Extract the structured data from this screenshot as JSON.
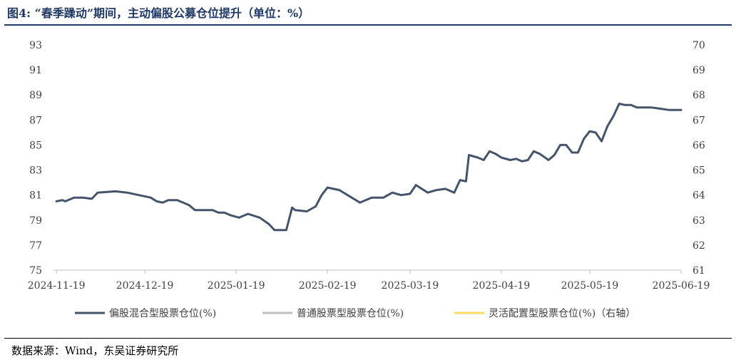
{
  "title": "图4:  “春季躁动”期间，主动偏股公募仓位提升（单位：%）",
  "source": "数据来源：Wind，东吴证券研究所",
  "chart_data": {
    "type": "line",
    "x_range": [
      "2024-11-18",
      "2025-06-19"
    ],
    "x_ticks": [
      "2024-11-19",
      "2024-12-19",
      "2025-01-19",
      "2025-02-19",
      "2025-03-19",
      "2025-04-19",
      "2025-05-19",
      "2025-06-19"
    ],
    "y_left": {
      "min": 75,
      "max": 93,
      "ticks": [
        "75",
        "77",
        "79",
        "81",
        "83",
        "85",
        "87",
        "89",
        "91",
        "93"
      ]
    },
    "y_right": {
      "min": 61,
      "max": 70,
      "ticks": [
        "61",
        "62",
        "63",
        "64",
        "65",
        "66",
        "67",
        "68",
        "69",
        "70"
      ]
    },
    "series": [
      {
        "name": "偏股混合型股票仓位(%)",
        "axis": "left",
        "color": "#44546a",
        "points": [
          [
            "2024-11-19",
            80.5
          ],
          [
            "2024-11-21",
            80.6
          ],
          [
            "2024-11-22",
            80.5
          ],
          [
            "2024-11-25",
            80.8
          ],
          [
            "2024-11-28",
            80.8
          ],
          [
            "2024-12-01",
            80.7
          ],
          [
            "2024-12-03",
            81.2
          ],
          [
            "2024-12-09",
            81.3
          ],
          [
            "2024-12-13",
            81.2
          ],
          [
            "2024-12-17",
            81.0
          ],
          [
            "2024-12-21",
            80.8
          ],
          [
            "2024-12-23",
            80.5
          ],
          [
            "2024-12-25",
            80.4
          ],
          [
            "2024-12-27",
            80.6
          ],
          [
            "2024-12-30",
            80.6
          ],
          [
            "2025-01-03",
            80.2
          ],
          [
            "2025-01-05",
            79.8
          ],
          [
            "2025-01-07",
            79.8
          ],
          [
            "2025-01-11",
            79.8
          ],
          [
            "2025-01-13",
            79.6
          ],
          [
            "2025-01-15",
            79.6
          ],
          [
            "2025-01-17",
            79.4
          ],
          [
            "2025-01-20",
            79.2
          ],
          [
            "2025-01-23",
            79.5
          ],
          [
            "2025-01-27",
            79.2
          ],
          [
            "2025-01-30",
            78.7
          ],
          [
            "2025-02-01",
            78.2
          ],
          [
            "2025-02-05",
            78.2
          ],
          [
            "2025-02-07",
            80.0
          ],
          [
            "2025-02-08",
            79.8
          ],
          [
            "2025-02-12",
            79.7
          ],
          [
            "2025-02-15",
            80.1
          ],
          [
            "2025-02-17",
            81.0
          ],
          [
            "2025-02-19",
            81.6
          ],
          [
            "2025-02-23",
            81.4
          ],
          [
            "2025-03-02",
            80.4
          ],
          [
            "2025-03-06",
            80.8
          ],
          [
            "2025-03-10",
            80.8
          ],
          [
            "2025-03-13",
            81.2
          ],
          [
            "2025-03-16",
            81.0
          ],
          [
            "2025-03-19",
            81.1
          ],
          [
            "2025-03-21",
            81.8
          ],
          [
            "2025-03-23",
            81.5
          ],
          [
            "2025-03-25",
            81.2
          ],
          [
            "2025-03-28",
            81.4
          ],
          [
            "2025-03-31",
            81.5
          ],
          [
            "2025-04-03",
            81.2
          ],
          [
            "2025-04-05",
            82.2
          ],
          [
            "2025-04-07",
            82.1
          ],
          [
            "2025-04-08",
            84.2
          ],
          [
            "2025-04-11",
            84.0
          ],
          [
            "2025-04-13",
            83.8
          ],
          [
            "2025-04-15",
            84.5
          ],
          [
            "2025-04-17",
            84.3
          ],
          [
            "2025-04-19",
            84.0
          ],
          [
            "2025-04-22",
            83.8
          ],
          [
            "2025-04-24",
            83.9
          ],
          [
            "2025-04-26",
            83.7
          ],
          [
            "2025-04-28",
            83.8
          ],
          [
            "2025-04-30",
            84.5
          ],
          [
            "2025-05-02",
            84.3
          ],
          [
            "2025-05-05",
            83.8
          ],
          [
            "2025-05-07",
            84.2
          ],
          [
            "2025-05-09",
            85.0
          ],
          [
            "2025-05-11",
            85.0
          ],
          [
            "2025-05-13",
            84.4
          ],
          [
            "2025-05-15",
            84.4
          ],
          [
            "2025-05-17",
            85.5
          ],
          [
            "2025-05-19",
            86.1
          ],
          [
            "2025-05-21",
            86.0
          ],
          [
            "2025-05-23",
            85.3
          ],
          [
            "2025-05-25",
            86.5
          ],
          [
            "2025-05-27",
            87.3
          ],
          [
            "2025-05-29",
            88.3
          ],
          [
            "2025-05-31",
            88.2
          ],
          [
            "2025-06-02",
            88.2
          ],
          [
            "2025-06-04",
            88.0
          ],
          [
            "2025-06-06",
            88.0
          ],
          [
            "2025-06-09",
            88.0
          ],
          [
            "2025-06-12",
            87.9
          ],
          [
            "2025-06-15",
            87.8
          ],
          [
            "2025-06-17",
            87.8
          ],
          [
            "2025-06-19",
            87.8
          ]
        ]
      }
    ]
  },
  "legend": [
    {
      "label": "偏股混合型股票仓位(%)",
      "color": "#44546a"
    },
    {
      "label": "普通股票型股票仓位(%)",
      "color": "#bfbfbf"
    },
    {
      "label": "灵活配置型股票仓位(%)（右轴）",
      "color": "#ffd966"
    }
  ]
}
